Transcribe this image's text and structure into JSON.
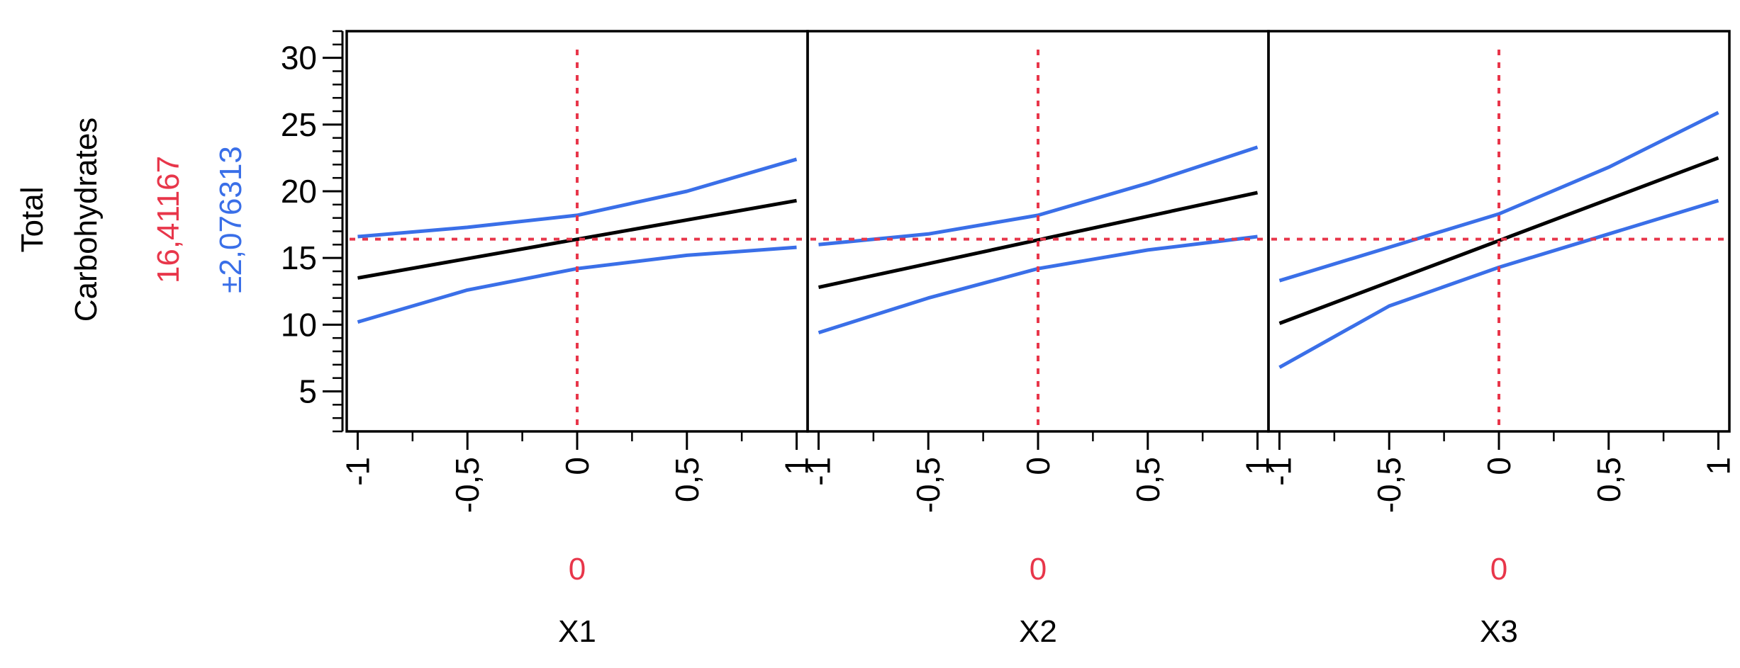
{
  "chart_data": {
    "type": "line",
    "layout": "profiler",
    "response": {
      "label_lines": [
        "Total",
        "Carbohydrates"
      ],
      "predicted": "16,41167",
      "interval": "±2,076313"
    },
    "y_ticks": [
      "5",
      "10",
      "15",
      "20",
      "25",
      "30"
    ],
    "ylim": [
      2,
      32
    ],
    "xlim": [
      -1.05,
      1.05
    ],
    "x_ticks": [
      "-1",
      "-0,5",
      "0",
      "0,5",
      "1"
    ],
    "x_tick_values": [
      -1,
      -0.5,
      0,
      0.5,
      1
    ],
    "current_y": 16.41167,
    "grid": false,
    "colors": {
      "prediction": "#000000",
      "interval": "#3a6fe8",
      "reference": "#e8364a"
    },
    "panels": [
      {
        "factor": "X1",
        "current_x": 0,
        "current_label": "0",
        "mean": [
          [
            -1,
            13.5
          ],
          [
            1,
            19.3
          ]
        ],
        "upper": [
          [
            -1,
            16.6
          ],
          [
            -0.5,
            17.3
          ],
          [
            0,
            18.2
          ],
          [
            0.5,
            20.0
          ],
          [
            1,
            22.4
          ]
        ],
        "lower": [
          [
            -1,
            10.2
          ],
          [
            -0.5,
            12.6
          ],
          [
            0,
            14.2
          ],
          [
            0.5,
            15.2
          ],
          [
            1,
            15.8
          ]
        ]
      },
      {
        "factor": "X2",
        "current_x": 0,
        "current_label": "0",
        "mean": [
          [
            -1,
            12.8
          ],
          [
            1,
            19.9
          ]
        ],
        "upper": [
          [
            -1,
            16.0
          ],
          [
            -0.5,
            16.8
          ],
          [
            0,
            18.2
          ],
          [
            0.5,
            20.6
          ],
          [
            1,
            23.3
          ]
        ],
        "lower": [
          [
            -1,
            9.4
          ],
          [
            -0.5,
            12.0
          ],
          [
            0,
            14.2
          ],
          [
            0.5,
            15.6
          ],
          [
            1,
            16.6
          ]
        ]
      },
      {
        "factor": "X3",
        "current_x": 0,
        "current_label": "0",
        "mean": [
          [
            -1,
            10.1
          ],
          [
            1,
            22.5
          ]
        ],
        "upper": [
          [
            -1,
            13.3
          ],
          [
            -0.5,
            15.8
          ],
          [
            0,
            18.3
          ],
          [
            0.5,
            21.8
          ],
          [
            1,
            25.9
          ]
        ],
        "lower": [
          [
            -1,
            6.8
          ],
          [
            -0.5,
            11.4
          ],
          [
            0,
            14.3
          ],
          [
            0.5,
            16.8
          ],
          [
            1,
            19.3
          ]
        ]
      }
    ]
  }
}
